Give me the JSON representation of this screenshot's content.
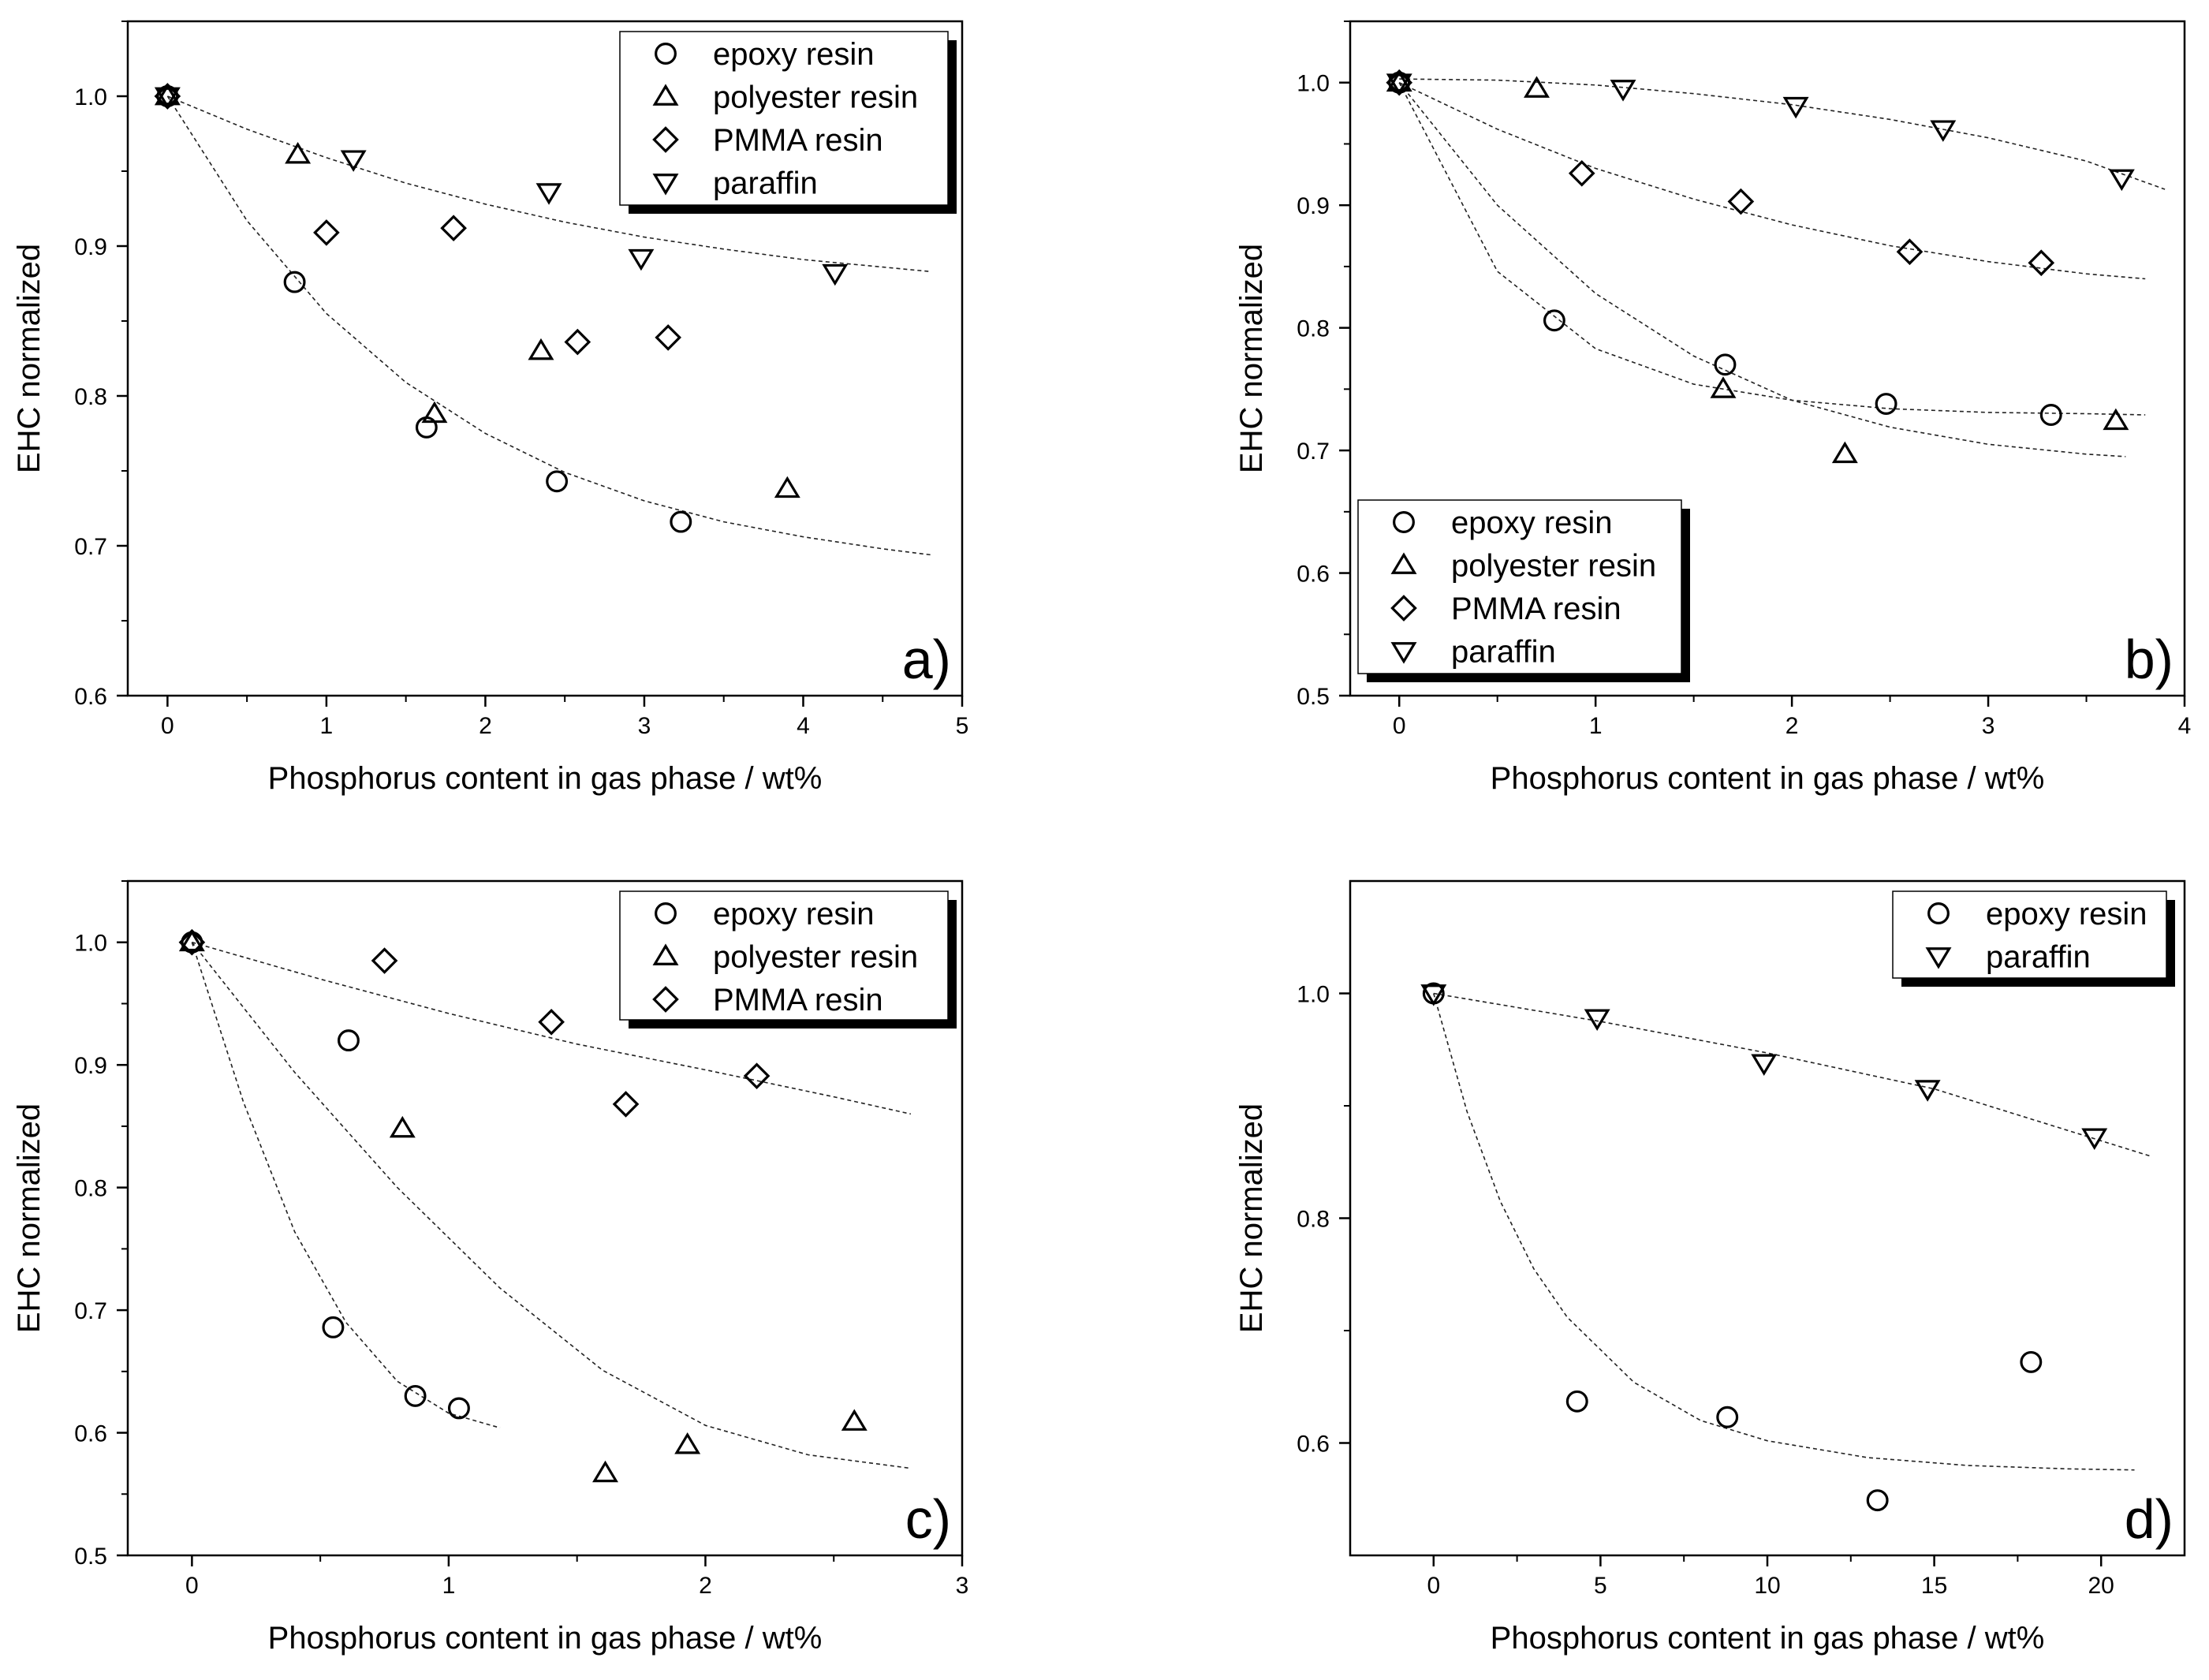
{
  "chart_data": [
    {
      "panel_label": "a)",
      "type": "scatter",
      "xlabel": "Phosphorus content in gas phase / wt%",
      "ylabel": "EHC normalized",
      "xlim": [
        -0.25,
        5
      ],
      "ylim": [
        0.6,
        1.05
      ],
      "xticks": [
        0,
        1,
        2,
        3,
        4,
        5
      ],
      "xtick_labels": [
        "0",
        "1",
        "2",
        "3",
        "4",
        "5"
      ],
      "yticks": [
        0.6,
        0.7,
        0.8,
        0.9,
        1.0
      ],
      "ytick_labels": [
        "0.6",
        "0.7",
        "0.8",
        "0.9",
        "1.0"
      ],
      "legend_position": "top-right",
      "series": [
        {
          "name": "epoxy resin",
          "marker": "circle",
          "x": [
            0,
            0.8,
            1.63,
            2.45,
            3.23
          ],
          "y": [
            1.0,
            0.876,
            0.779,
            0.743,
            0.716
          ]
        },
        {
          "name": "polyester resin",
          "marker": "triangle-up",
          "x": [
            0,
            0.82,
            1.68,
            2.35,
            3.9
          ],
          "y": [
            1.0,
            0.961,
            0.788,
            0.83,
            0.738
          ]
        },
        {
          "name": "PMMA resin",
          "marker": "diamond",
          "x": [
            0,
            1.0,
            1.8,
            2.58,
            3.15
          ],
          "y": [
            1.0,
            0.909,
            0.912,
            0.836,
            0.839
          ]
        },
        {
          "name": "paraffin",
          "marker": "triangle-down",
          "x": [
            0,
            1.17,
            2.4,
            2.98,
            4.2
          ],
          "y": [
            1.0,
            0.958,
            0.936,
            0.892,
            0.882
          ]
        }
      ],
      "fits": [
        {
          "x": [
            0,
            0.5,
            1,
            1.5,
            2,
            2.5,
            3,
            3.5,
            4,
            4.5,
            4.8
          ],
          "y": [
            1.0,
            0.917,
            0.855,
            0.809,
            0.775,
            0.749,
            0.73,
            0.716,
            0.706,
            0.698,
            0.694
          ]
        },
        {
          "x": [
            0,
            0.5,
            1,
            1.5,
            2,
            2.5,
            3,
            3.5,
            4,
            4.5,
            4.8
          ],
          "y": [
            1.0,
            0.978,
            0.959,
            0.942,
            0.928,
            0.916,
            0.906,
            0.898,
            0.891,
            0.886,
            0.883
          ]
        }
      ]
    },
    {
      "panel_label": "b)",
      "type": "scatter",
      "xlabel": "Phosphorus content in gas phase / wt%",
      "ylabel": "EHC normalized",
      "xlim": [
        -0.25,
        4
      ],
      "ylim": [
        0.5,
        1.05
      ],
      "xticks": [
        0,
        1,
        2,
        3,
        4
      ],
      "xtick_labels": [
        "0",
        "1",
        "2",
        "3",
        "4"
      ],
      "yticks": [
        0.5,
        0.6,
        0.7,
        0.8,
        0.9,
        1.0
      ],
      "ytick_labels": [
        "0.5",
        "0.6",
        "0.7",
        "0.8",
        "0.9",
        "1.0"
      ],
      "legend_position": "bottom-left",
      "series": [
        {
          "name": "epoxy resin",
          "marker": "circle",
          "x": [
            0,
            0.79,
            1.66,
            2.48,
            3.32
          ],
          "y": [
            1.0,
            0.806,
            0.77,
            0.738,
            0.729
          ]
        },
        {
          "name": "polyester resin",
          "marker": "triangle-up",
          "x": [
            0,
            0.7,
            1.65,
            2.27,
            3.65
          ],
          "y": [
            1.0,
            0.995,
            0.75,
            0.697,
            0.724
          ]
        },
        {
          "name": "PMMA resin",
          "marker": "diamond",
          "x": [
            0,
            0.93,
            1.74,
            2.6,
            3.27
          ],
          "y": [
            1.0,
            0.926,
            0.903,
            0.862,
            0.853
          ]
        },
        {
          "name": "paraffin",
          "marker": "triangle-down",
          "x": [
            0,
            1.14,
            2.02,
            2.77,
            3.68
          ],
          "y": [
            1.0,
            0.995,
            0.981,
            0.962,
            0.922
          ]
        }
      ],
      "fits": [
        {
          "x": [
            0,
            0.5,
            1,
            1.5,
            2,
            2.5,
            3,
            3.5,
            3.8
          ],
          "y": [
            1.0,
            0.846,
            0.783,
            0.754,
            0.741,
            0.734,
            0.731,
            0.73,
            0.729
          ]
        },
        {
          "x": [
            0,
            0.5,
            1,
            1.5,
            2,
            2.5,
            3,
            3.5,
            3.7
          ],
          "y": [
            1.0,
            0.9,
            0.828,
            0.777,
            0.741,
            0.719,
            0.705,
            0.697,
            0.695
          ]
        },
        {
          "x": [
            0,
            0.5,
            1,
            1.5,
            2,
            2.5,
            3,
            3.5,
            3.8
          ],
          "y": [
            1.0,
            0.962,
            0.93,
            0.905,
            0.884,
            0.867,
            0.854,
            0.844,
            0.84
          ]
        },
        {
          "x": [
            0,
            0.5,
            1,
            1.5,
            2,
            2.5,
            3,
            3.5,
            3.9
          ],
          "y": [
            1.003,
            1.002,
            0.998,
            0.991,
            0.982,
            0.97,
            0.955,
            0.936,
            0.913
          ]
        }
      ]
    },
    {
      "panel_label": "c)",
      "type": "scatter",
      "xlabel": "Phosphorus content in gas phase / wt%",
      "ylabel": "EHC normalized",
      "xlim": [
        -0.25,
        3
      ],
      "ylim": [
        0.5,
        1.05
      ],
      "xticks": [
        0,
        1,
        2,
        3
      ],
      "xtick_labels": [
        "0",
        "1",
        "2",
        "3"
      ],
      "yticks": [
        0.5,
        0.6,
        0.7,
        0.8,
        0.9,
        1.0
      ],
      "ytick_labels": [
        "0.5",
        "0.6",
        "0.7",
        "0.8",
        "0.9",
        "1.0"
      ],
      "legend_position": "top-right",
      "series": [
        {
          "name": "epoxy resin",
          "marker": "circle",
          "x": [
            0,
            0.55,
            0.61,
            0.87,
            1.04
          ],
          "y": [
            1.0,
            0.686,
            0.92,
            0.63,
            0.62
          ]
        },
        {
          "name": "polyester resin",
          "marker": "triangle-up",
          "x": [
            0,
            0.82,
            1.61,
            1.93,
            2.58
          ],
          "y": [
            1.0,
            0.848,
            0.567,
            0.59,
            0.609
          ]
        },
        {
          "name": "PMMA resin",
          "marker": "diamond",
          "x": [
            0,
            0.75,
            1.4,
            1.69,
            2.2
          ],
          "y": [
            1.0,
            0.985,
            0.935,
            0.868,
            0.891
          ]
        }
      ],
      "fits": [
        {
          "x": [
            0,
            0.2,
            0.4,
            0.6,
            0.8,
            1.0,
            1.2
          ],
          "y": [
            1.0,
            0.87,
            0.764,
            0.69,
            0.642,
            0.616,
            0.604
          ]
        },
        {
          "x": [
            0,
            0.4,
            0.8,
            1.2,
            1.6,
            2.0,
            2.4,
            2.8
          ],
          "y": [
            1.0,
            0.894,
            0.8,
            0.718,
            0.651,
            0.606,
            0.582,
            0.571
          ]
        },
        {
          "x": [
            0,
            0.5,
            1.0,
            1.5,
            2.0,
            2.5,
            2.8
          ],
          "y": [
            1.0,
            0.97,
            0.942,
            0.917,
            0.896,
            0.874,
            0.86
          ]
        }
      ]
    },
    {
      "panel_label": "d)",
      "type": "scatter",
      "xlabel": "Phosphorus content in gas phase / wt%",
      "ylabel": "EHC normalized",
      "xlim": [
        -2.5,
        22.5
      ],
      "ylim": [
        0.5,
        1.1
      ],
      "xticks": [
        0,
        5,
        10,
        15,
        20
      ],
      "xtick_labels": [
        "0",
        "5",
        "10",
        "15",
        "20"
      ],
      "yticks": [
        0.6,
        0.8,
        1.0
      ],
      "ytick_labels": [
        "0.6",
        "0.8",
        "1.0"
      ],
      "legend_position": "top-right",
      "series": [
        {
          "name": "epoxy resin",
          "marker": "circle",
          "x": [
            0,
            4.3,
            8.8,
            13.3,
            17.9
          ],
          "y": [
            1.0,
            0.637,
            0.623,
            0.549,
            0.672
          ]
        },
        {
          "name": "paraffin",
          "marker": "triangle-down",
          "x": [
            0,
            4.9,
            9.9,
            14.8,
            19.8
          ],
          "y": [
            1.0,
            0.978,
            0.938,
            0.915,
            0.872
          ]
        }
      ],
      "fits": [
        {
          "x": [
            0,
            1,
            2,
            3,
            4,
            6,
            8,
            10,
            13,
            16,
            19,
            21
          ],
          "y": [
            1.0,
            0.895,
            0.815,
            0.755,
            0.712,
            0.654,
            0.62,
            0.602,
            0.587,
            0.58,
            0.577,
            0.576
          ]
        },
        {
          "x": [
            0,
            5,
            10,
            15,
            21.5
          ],
          "y": [
            1.0,
            0.975,
            0.947,
            0.915,
            0.855
          ]
        }
      ]
    }
  ]
}
